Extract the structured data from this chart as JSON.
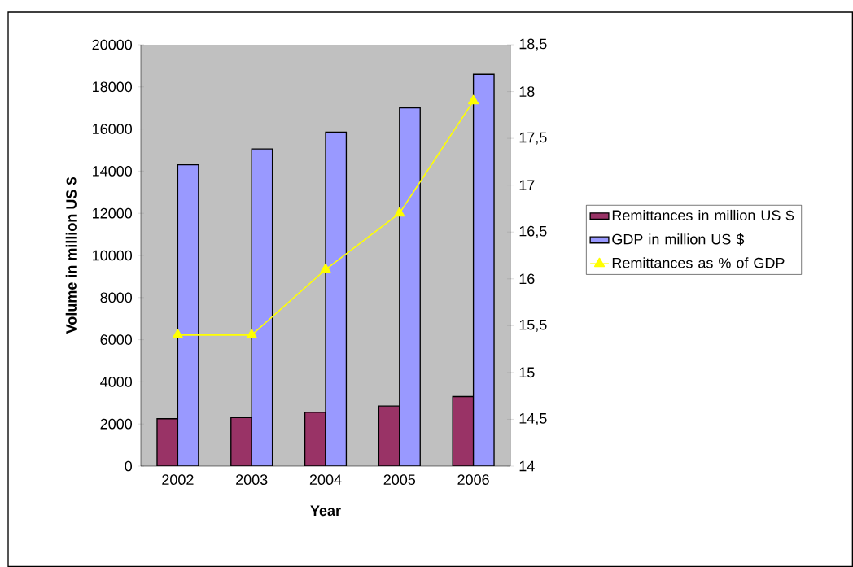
{
  "chart_data": {
    "type": "bar",
    "categories": [
      "2002",
      "2003",
      "2004",
      "2005",
      "2006"
    ],
    "xlabel": "Year",
    "ylabel": "Volume in million US $",
    "ylim": [
      0,
      20000
    ],
    "yticks": [
      0,
      2000,
      4000,
      6000,
      8000,
      10000,
      12000,
      14000,
      16000,
      18000,
      20000
    ],
    "y2lim": [
      14,
      18.5
    ],
    "y2ticks": [
      14,
      {
        "value": 14.5,
        "label": "14,5"
      },
      15,
      {
        "value": 15.5,
        "label": "15,5"
      },
      16,
      {
        "value": 16.5,
        "label": "16,5"
      },
      17,
      {
        "value": 17.5,
        "label": "17,5"
      },
      18,
      {
        "value": 18.5,
        "label": "18,5"
      }
    ],
    "legend": "right",
    "grid": false,
    "series": [
      {
        "name": "Remittances in million US $",
        "color": "#993366",
        "values": [
          2250,
          2300,
          2550,
          2850,
          3300
        ]
      },
      {
        "name": "GDP in million US $",
        "color": "#9999ff",
        "values": [
          14300,
          15050,
          15850,
          17000,
          18600
        ]
      },
      {
        "type": "line",
        "axis": "y2",
        "name": "Remittances as % of GDP",
        "color": "#ffff00",
        "marker": "triangle",
        "line_style": "solid",
        "values": [
          15.4,
          15.4,
          16.1,
          16.7,
          17.9
        ]
      }
    ]
  }
}
